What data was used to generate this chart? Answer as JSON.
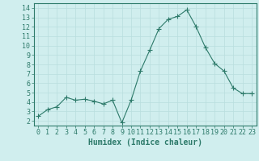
{
  "x": [
    0,
    1,
    2,
    3,
    4,
    5,
    6,
    7,
    8,
    9,
    10,
    11,
    12,
    13,
    14,
    15,
    16,
    17,
    18,
    19,
    20,
    21,
    22,
    23
  ],
  "y": [
    2.5,
    3.2,
    3.5,
    4.5,
    4.2,
    4.3,
    4.1,
    3.8,
    4.2,
    1.8,
    4.2,
    7.3,
    9.5,
    11.8,
    12.8,
    13.1,
    13.8,
    12.0,
    9.8,
    8.1,
    7.3,
    5.5,
    4.9,
    4.9
  ],
  "line_color": "#2d7a6a",
  "marker": "+",
  "marker_size": 4,
  "bg_color": "#d0eeee",
  "grid_color": "#b8dede",
  "xlabel": "Humidex (Indice chaleur)",
  "ylim": [
    1.5,
    14.5
  ],
  "xlim": [
    -0.5,
    23.5
  ],
  "yticks": [
    2,
    3,
    4,
    5,
    6,
    7,
    8,
    9,
    10,
    11,
    12,
    13,
    14
  ],
  "xticks": [
    0,
    1,
    2,
    3,
    4,
    5,
    6,
    7,
    8,
    9,
    10,
    11,
    12,
    13,
    14,
    15,
    16,
    17,
    18,
    19,
    20,
    21,
    22,
    23
  ],
  "tick_color": "#2d7a6a",
  "label_color": "#2d7a6a",
  "font_size": 6,
  "xlabel_fontsize": 7
}
